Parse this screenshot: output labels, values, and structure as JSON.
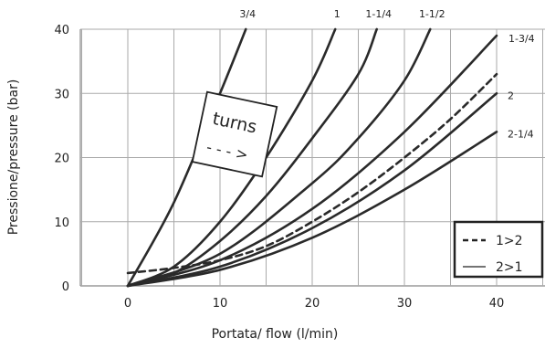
{
  "chart_data": {
    "type": "line",
    "xlabel": "Portata/ flow (l/min)",
    "ylabel": "Pressione/pressure (bar)",
    "xlim": [
      -5,
      40
    ],
    "ylim": [
      0,
      40
    ],
    "x_ticks": [
      "0",
      "10",
      "20",
      "30",
      "40"
    ],
    "y_ticks": [
      "0",
      "10",
      "20",
      "30",
      "40"
    ],
    "grid": true,
    "annotation": {
      "text": "turns",
      "arrow": "- - - >"
    },
    "series": [
      {
        "name": "3/4",
        "style": "solid",
        "x": [
          0,
          5,
          10,
          12.8
        ],
        "y": [
          0,
          13,
          30,
          40
        ]
      },
      {
        "name": "1",
        "style": "solid",
        "x": [
          0,
          5,
          10,
          15,
          20,
          22.5
        ],
        "y": [
          0,
          3,
          10,
          20,
          32,
          40
        ]
      },
      {
        "name": "1-1/4",
        "style": "solid",
        "x": [
          0,
          5,
          10,
          15,
          20,
          25,
          27
        ],
        "y": [
          0,
          2,
          7,
          14,
          23,
          33,
          40
        ]
      },
      {
        "name": "1-1/2",
        "style": "solid",
        "x": [
          0,
          10,
          20,
          25,
          30,
          32.8
        ],
        "y": [
          0,
          5,
          16,
          23,
          32,
          40
        ]
      },
      {
        "name": "1-3/4",
        "style": "solid",
        "x": [
          0,
          10,
          20,
          30,
          40
        ],
        "y": [
          0,
          4,
          12,
          24,
          39
        ]
      },
      {
        "name": "2",
        "style": "solid",
        "x": [
          0,
          10,
          20,
          30,
          40
        ],
        "y": [
          0,
          3,
          9,
          18,
          30
        ]
      },
      {
        "name": "2-1/4",
        "style": "solid",
        "x": [
          0,
          10,
          20,
          30,
          40
        ],
        "y": [
          0,
          2.5,
          7.5,
          15,
          24
        ]
      },
      {
        "name": "1>2",
        "style": "dashed",
        "x": [
          0,
          5,
          10,
          15,
          20,
          25,
          30,
          35,
          40
        ],
        "y": [
          2,
          2.8,
          4,
          6.2,
          10,
          14.6,
          20,
          26,
          33
        ]
      }
    ],
    "legend": {
      "position": "bottom-right",
      "entries": [
        {
          "label": "1>2",
          "style": "dashed"
        },
        {
          "label": "2>1",
          "style": "solid"
        }
      ]
    }
  }
}
